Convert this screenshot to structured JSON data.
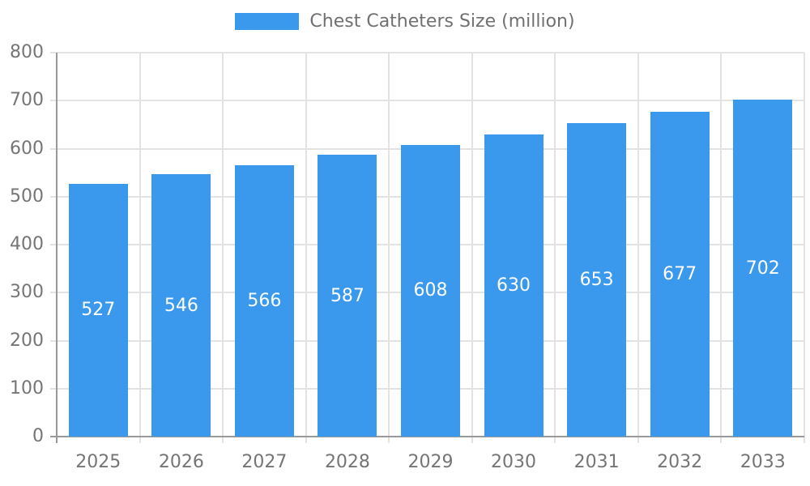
{
  "legend": {
    "label": "Chest Catheters Size (million)"
  },
  "chart_data": {
    "type": "bar",
    "title": "Chest Catheters Size (million)",
    "categories": [
      "2025",
      "2026",
      "2027",
      "2028",
      "2029",
      "2030",
      "2031",
      "2032",
      "2033"
    ],
    "values": [
      527,
      546,
      566,
      587,
      608,
      630,
      653,
      677,
      702
    ],
    "series_name": "Chest Catheters Size (million)",
    "xlabel": "",
    "ylabel": "",
    "ylim": [
      0,
      800
    ],
    "ytick_step": 100,
    "ytick_labels": [
      "0",
      "100",
      "200",
      "300",
      "400",
      "500",
      "600",
      "700",
      "800"
    ],
    "grid": "on",
    "legend_position": "top",
    "value_labels": "inside-center"
  },
  "colors": {
    "bar": "#3A99EC",
    "grid": "#E3E3E3",
    "axis": "#999999",
    "tick_text": "#757575",
    "legend_text": "#707070",
    "value_text": "#FFFFFF",
    "background": "#FFFFFF"
  }
}
